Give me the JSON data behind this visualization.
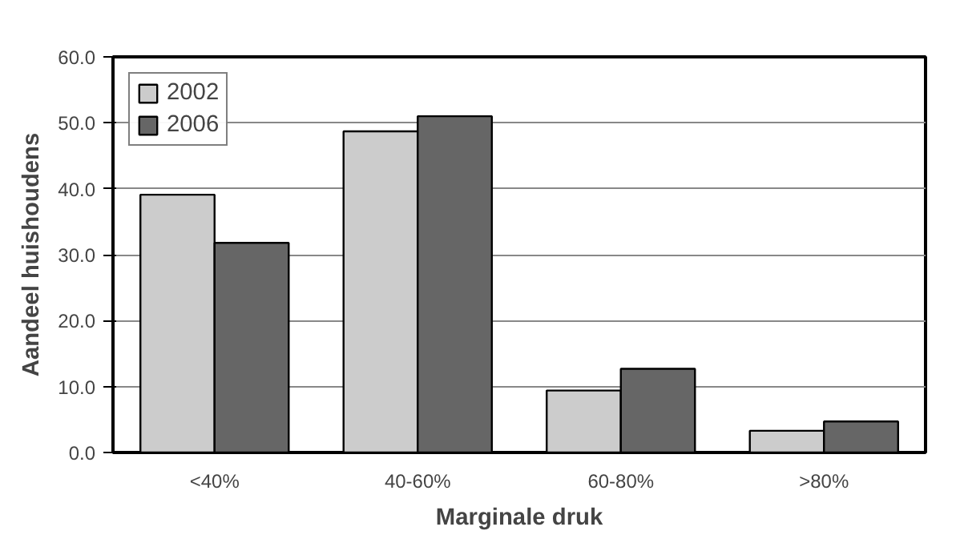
{
  "chart_data": {
    "type": "bar",
    "xlabel": "Marginale druk",
    "ylabel": "Aandeel huishoudens",
    "categories": [
      "<40%",
      "40-60%",
      "60-80%",
      ">80%"
    ],
    "series": [
      {
        "name": "2002",
        "color": "#cccccc",
        "values": [
          39.1,
          48.7,
          9.4,
          3.3
        ]
      },
      {
        "name": "2006",
        "color": "#666666",
        "values": [
          31.8,
          51.0,
          12.7,
          4.7
        ]
      }
    ],
    "ylim": [
      0,
      60
    ],
    "yticks": [
      {
        "value": 0,
        "label": "0.0"
      },
      {
        "value": 10,
        "label": "10.0"
      },
      {
        "value": 20,
        "label": "20.0"
      },
      {
        "value": 30,
        "label": "30.0"
      },
      {
        "value": 40,
        "label": "40.0"
      },
      {
        "value": 50,
        "label": "50.0"
      },
      {
        "value": 60,
        "label": "60.0"
      }
    ],
    "grid": "y",
    "legend": "top left"
  }
}
